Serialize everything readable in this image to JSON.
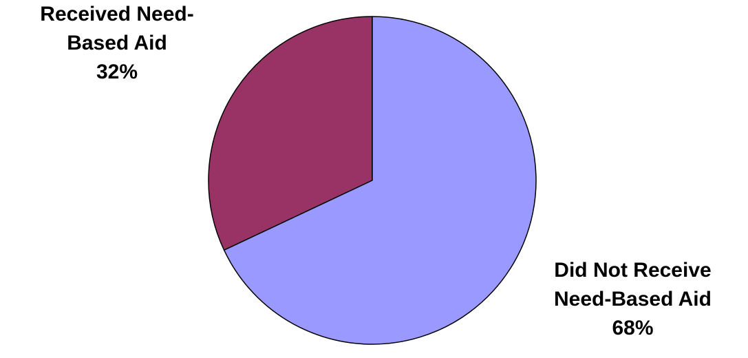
{
  "chart_data": {
    "type": "pie",
    "title": "",
    "slices": [
      {
        "label_lines": [
          "Received Need-",
          "Based Aid"
        ],
        "value": 32,
        "value_label": "32%",
        "color": "#993366"
      },
      {
        "label_lines": [
          "Did Not Receive",
          "Need-Based Aid"
        ],
        "value": 68,
        "value_label": "68%",
        "color": "#9999ff"
      }
    ],
    "start_angle_deg": 0,
    "direction": "counter-clockwise",
    "outline_color": "#000000"
  }
}
